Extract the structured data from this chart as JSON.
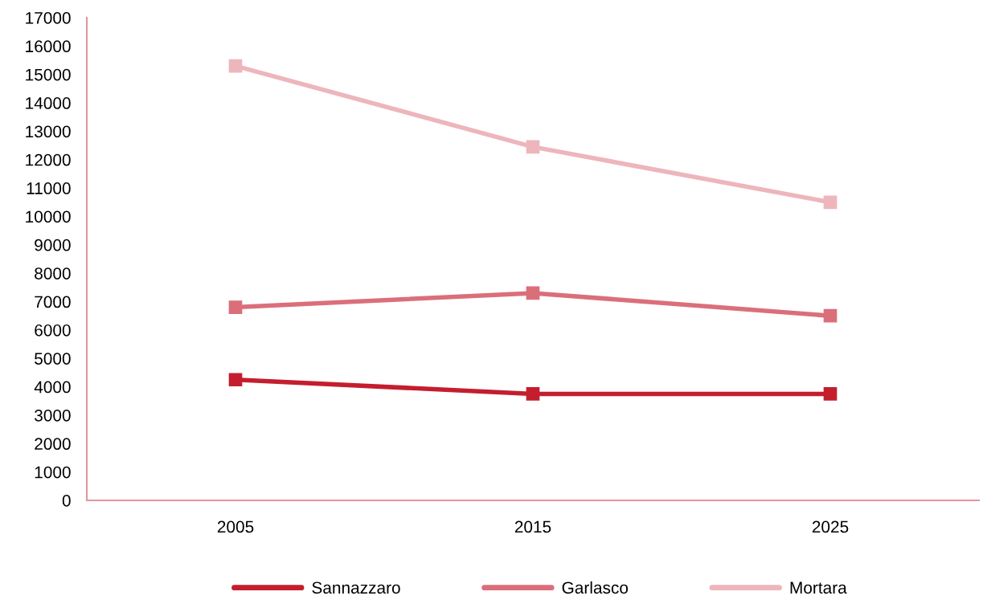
{
  "chart_data": {
    "type": "line",
    "categories": [
      "2005",
      "2015",
      "2025"
    ],
    "series": [
      {
        "name": "Sannazzaro",
        "color": "#c41e2e",
        "values": [
          4250,
          3750,
          3750
        ]
      },
      {
        "name": "Garlasco",
        "color": "#da6f7a",
        "values": [
          6800,
          7300,
          6500
        ]
      },
      {
        "name": "Mortara",
        "color": "#edb6bc",
        "values": [
          15300,
          12450,
          10500
        ]
      }
    ],
    "ylim": [
      0,
      17000
    ],
    "yticks": [
      0,
      1000,
      2000,
      3000,
      4000,
      5000,
      6000,
      7000,
      8000,
      9000,
      10000,
      11000,
      12000,
      13000,
      14000,
      15000,
      16000,
      17000
    ],
    "grid": false,
    "legend": "bottom",
    "marker": "square",
    "line_style": "solid"
  }
}
